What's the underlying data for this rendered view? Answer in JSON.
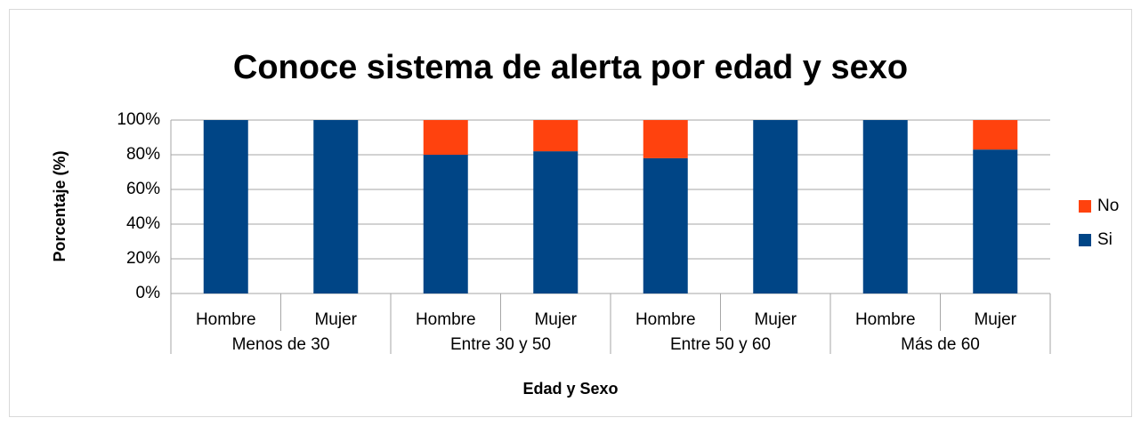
{
  "chart_data": {
    "type": "stacked_bar",
    "title": "Conoce sistema de alerta por edad y sexo",
    "x_label": "Edad y Sexo",
    "y_label": "Porcentaje (%)",
    "categories": [
      "Hombre",
      "Mujer",
      "Hombre",
      "Mujer",
      "Hombre",
      "Mujer",
      "Hombre",
      "Mujer"
    ],
    "groups": [
      "Menos de 30",
      "Entre 30 y 50",
      "Entre 50 y 60",
      "Más de 60"
    ],
    "series": [
      {
        "name": "Si",
        "color": "#004586",
        "values": [
          100,
          100,
          80,
          82,
          78,
          100,
          100,
          83
        ]
      },
      {
        "name": "No",
        "color": "#ff420e",
        "values": [
          0,
          0,
          20,
          18,
          22,
          0,
          0,
          17
        ]
      }
    ],
    "ylim": [
      0,
      100
    ],
    "yticks": [
      {
        "value": 0,
        "label": "0%"
      },
      {
        "value": 20,
        "label": "20%"
      },
      {
        "value": 40,
        "label": "40%"
      },
      {
        "value": 60,
        "label": "60%"
      },
      {
        "value": 80,
        "label": "80%"
      },
      {
        "value": 100,
        "label": "100%"
      }
    ],
    "grid": true,
    "legend": "right"
  }
}
